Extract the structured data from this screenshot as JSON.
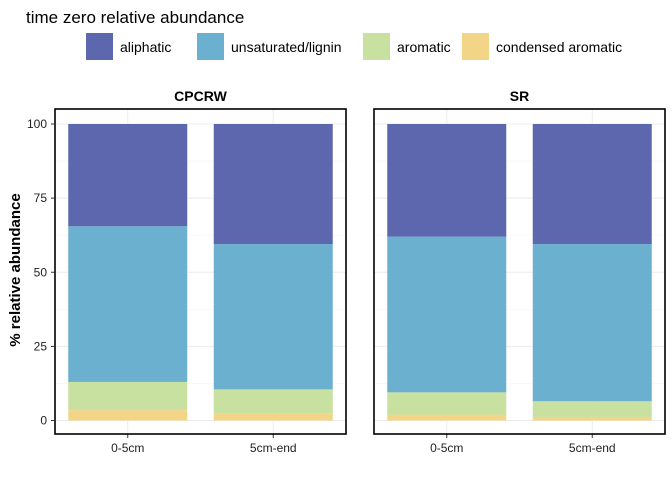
{
  "chart_data": {
    "type": "bar",
    "stacked": true,
    "legend_title": "time zero relative abundance",
    "legend_position": "top",
    "ylabel": "% relative abundance",
    "xlabel": "",
    "ylim": [
      0,
      100
    ],
    "yticks": [
      0,
      25,
      50,
      75,
      100
    ],
    "grid": true,
    "categories": [
      "0-5cm",
      "5cm-end"
    ],
    "series": [
      {
        "name": "condensed aromatic",
        "color": "#f3d587"
      },
      {
        "name": "aromatic",
        "color": "#c8e0a0"
      },
      {
        "name": "unsaturated/lignin",
        "color": "#6bb0cf"
      },
      {
        "name": "aliphatic",
        "color": "#5c67ae"
      }
    ],
    "legend_order": [
      "aliphatic",
      "unsaturated/lignin",
      "aromatic",
      "condensed aromatic"
    ],
    "facets": [
      {
        "title": "CPCRW",
        "values": {
          "condensed aromatic": [
            3.5,
            2.5
          ],
          "aromatic": [
            9.5,
            8.0
          ],
          "unsaturated/lignin": [
            52.5,
            49.0
          ],
          "aliphatic": [
            34.5,
            40.5
          ]
        }
      },
      {
        "title": "SR",
        "values": {
          "condensed aromatic": [
            2.0,
            1.2
          ],
          "aromatic": [
            7.5,
            5.3
          ],
          "unsaturated/lignin": [
            52.5,
            53.0
          ],
          "aliphatic": [
            38.0,
            40.5
          ]
        }
      }
    ]
  }
}
